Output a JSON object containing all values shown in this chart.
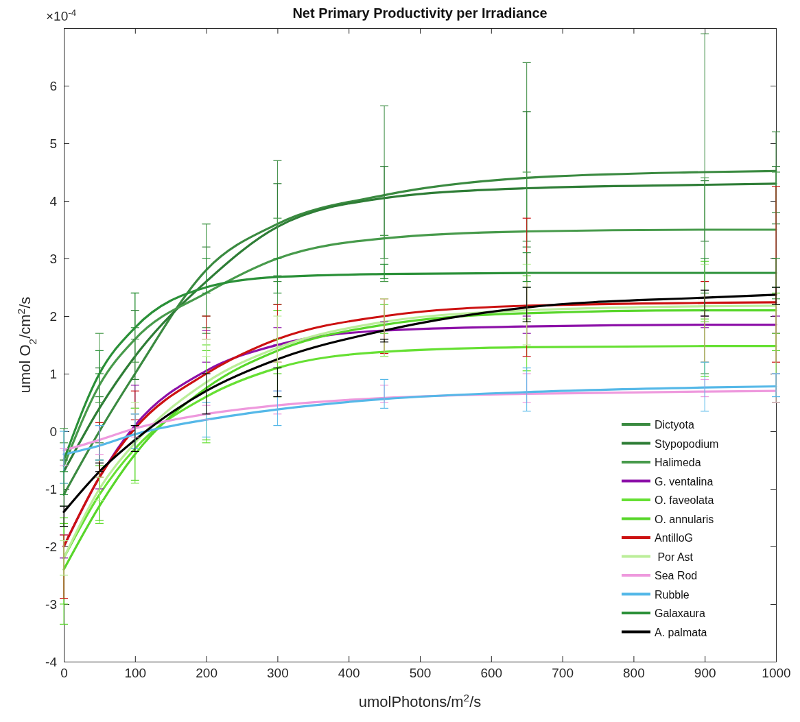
{
  "chart_data": {
    "type": "line",
    "title": "Net Primary Productivity per Irradiance",
    "xlabel": "umolPhotons/m$^{2}$/s",
    "ylabel": "umol O$_{2}$/cm$^{2}$/s",
    "annotations": [
      "×10$^{-4}$"
    ],
    "x": [
      0,
      50,
      100,
      200,
      300,
      450,
      650,
      900,
      1000
    ],
    "xlim": [
      0,
      1000
    ],
    "xticks": [
      0,
      100,
      200,
      300,
      400,
      500,
      600,
      700,
      800,
      900,
      1000
    ],
    "ylim": [
      -4,
      7
    ],
    "yticks": [
      -4,
      -3,
      -2,
      -1,
      0,
      1,
      2,
      3,
      4,
      5,
      6
    ],
    "grid": false,
    "legend": "bottom right",
    "marker": "none",
    "line_style": "solid",
    "series": [
      {
        "name": "Dictyota",
        "color": "#3a8a40",
        "values": [
          -1.1,
          0.0,
          1.0,
          2.8,
          3.6,
          4.1,
          4.4,
          4.5,
          4.52
        ],
        "errors": [
          [
            -1.3,
            -0.9
          ],
          [
            -0.6,
            0.6
          ],
          [
            0.4,
            1.6
          ],
          [
            1.8,
            3.6
          ],
          [
            2.6,
            4.7
          ],
          [
            3.0,
            5.65
          ],
          [
            3.3,
            6.4
          ],
          [
            2.1,
            6.9
          ],
          [
            3.8,
            5.2
          ]
        ]
      },
      {
        "name": "Stypopodium",
        "color": "#2e7d36",
        "values": [
          -0.7,
          0.4,
          1.3,
          2.6,
          3.55,
          4.05,
          4.22,
          4.28,
          4.3
        ],
        "errors": [
          [
            -0.9,
            -0.5
          ],
          [
            -0.2,
            1.1
          ],
          [
            0.9,
            2.1
          ],
          [
            2.0,
            3.2
          ],
          [
            2.7,
            4.3
          ],
          [
            3.4,
            4.6
          ],
          [
            3.2,
            5.55
          ],
          [
            3.3,
            4.35
          ],
          [
            3.6,
            4.6
          ]
        ]
      },
      {
        "name": "Halimeda",
        "color": "#479a4b",
        "values": [
          -0.6,
          0.8,
          1.6,
          2.4,
          3.0,
          3.35,
          3.47,
          3.5,
          3.5
        ],
        "errors": [
          [
            -0.2,
            0.05
          ],
          [
            0.5,
            1.7
          ],
          [
            1.2,
            2.4
          ],
          [
            1.7,
            3.6
          ],
          [
            2.2,
            3.7
          ],
          [
            2.6,
            3.4
          ],
          [
            2.5,
            4.5
          ],
          [
            1.0,
            4.4
          ],
          [
            2.3,
            4.5
          ]
        ]
      },
      {
        "name": "G. ventalina",
        "color": "#8c10a8",
        "values": [
          -2.0,
          -0.8,
          0.1,
          1.05,
          1.5,
          1.75,
          1.82,
          1.85,
          1.85
        ],
        "errors": [
          [
            -2.2,
            -1.8
          ],
          [
            -1.0,
            -0.5
          ],
          [
            0.1,
            0.8
          ],
          [
            1.2,
            1.75
          ],
          [
            1.5,
            1.8
          ],
          [
            1.6,
            1.9
          ],
          [
            1.7,
            2.0
          ],
          [
            1.8,
            2.0
          ],
          [
            1.7,
            2.0
          ]
        ]
      },
      {
        "name": "O. faveolata",
        "color": "#66e033",
        "values": [
          -2.2,
          -1.1,
          -0.3,
          0.6,
          1.1,
          1.38,
          1.46,
          1.48,
          1.48
        ],
        "errors": [
          [
            -3.0,
            -1.5
          ],
          [
            -1.6,
            -0.5
          ],
          [
            -0.9,
            0.4
          ],
          [
            -0.2,
            1.5
          ],
          [
            0.6,
            1.6
          ],
          [
            1.3,
            1.6
          ],
          [
            1.05,
            1.95
          ],
          [
            0.95,
            1.9
          ],
          [
            0.5,
            1.7
          ]
        ]
      },
      {
        "name": "O. annularis",
        "color": "#58d62a",
        "values": [
          -2.4,
          -1.3,
          -0.4,
          0.75,
          1.4,
          1.85,
          2.05,
          2.1,
          2.1
        ],
        "errors": [
          [
            -3.35,
            -1.6
          ],
          [
            -1.55,
            -0.6
          ],
          [
            -0.85,
            0.3
          ],
          [
            -0.15,
            1.4
          ],
          [
            1.0,
            2.1
          ],
          [
            1.7,
            2.2
          ],
          [
            1.9,
            2.7
          ],
          [
            1.95,
            2.95
          ],
          [
            1.4,
            2.4
          ]
        ]
      },
      {
        "name": "AntilloG",
        "color": "#cc1111",
        "values": [
          -2.0,
          -0.8,
          0.05,
          1.0,
          1.6,
          2.0,
          2.18,
          2.23,
          2.24
        ],
        "errors": [
          [
            -2.9,
            -1.8
          ],
          [
            -0.8,
            0.15
          ],
          [
            0.2,
            0.7
          ],
          [
            1.6,
            2.0
          ],
          [
            1.2,
            2.2
          ],
          [
            1.35,
            2.3
          ],
          [
            1.3,
            3.7
          ],
          [
            1.2,
            2.6
          ],
          [
            1.2,
            4.25
          ]
        ]
      },
      {
        "name": " Por Ast",
        "color": "#bbee99",
        "values": [
          -2.2,
          -1.0,
          -0.2,
          0.85,
          1.45,
          1.9,
          2.1,
          2.17,
          2.18
        ],
        "errors": [
          [
            -2.5,
            -1.9
          ],
          [
            -1.2,
            -0.8
          ],
          [
            -0.3,
            0.5
          ],
          [
            1.3,
            1.6
          ],
          [
            1.2,
            2.0
          ],
          [
            1.3,
            2.3
          ],
          [
            1.5,
            2.9
          ],
          [
            1.2,
            2.9
          ],
          [
            1.0,
            2.2
          ]
        ]
      },
      {
        "name": "Sea Rod",
        "color": "#ee99dd",
        "values": [
          -0.33,
          -0.15,
          0.05,
          0.3,
          0.45,
          0.58,
          0.65,
          0.69,
          0.7
        ],
        "errors": [
          [
            -0.6,
            -0.3
          ],
          [
            -0.4,
            0.1
          ],
          [
            -0.1,
            0.3
          ],
          [
            0.2,
            0.45
          ],
          [
            0.3,
            0.7
          ],
          [
            0.5,
            0.8
          ],
          [
            0.5,
            1.0
          ],
          [
            0.6,
            0.9
          ],
          [
            0.5,
            1.0
          ]
        ]
      },
      {
        "name": "Rubble",
        "color": "#55b8e8",
        "values": [
          -0.4,
          -0.25,
          -0.05,
          0.2,
          0.38,
          0.56,
          0.68,
          0.76,
          0.78
        ],
        "errors": [
          [
            -0.9,
            0.0
          ],
          [
            -0.5,
            0.1
          ],
          [
            -0.3,
            0.3
          ],
          [
            -0.1,
            0.5
          ],
          [
            0.1,
            0.7
          ],
          [
            0.4,
            0.9
          ],
          [
            0.35,
            1.1
          ],
          [
            0.35,
            1.2
          ],
          [
            0.6,
            1.0
          ]
        ]
      },
      {
        "name": "Galaxaura",
        "color": "#2a9038",
        "values": [
          -0.5,
          1.0,
          1.8,
          2.5,
          2.68,
          2.73,
          2.75,
          2.75,
          2.75
        ],
        "errors": [
          [
            -1.1,
            -0.7
          ],
          [
            1.0,
            1.4
          ],
          [
            1.8,
            2.4
          ],
          [
            2.4,
            3.0
          ],
          [
            2.4,
            3.0
          ],
          [
            2.65,
            2.9
          ],
          [
            2.6,
            3.1
          ],
          [
            2.4,
            3.0
          ],
          [
            2.5,
            3.0
          ]
        ]
      },
      {
        "name": "A. palmata",
        "color": "#000000",
        "values": [
          -1.4,
          -0.7,
          -0.15,
          0.7,
          1.25,
          1.75,
          2.15,
          2.32,
          2.37
        ],
        "errors": [
          [
            -1.65,
            -1.3
          ],
          [
            -0.7,
            -0.55
          ],
          [
            -0.35,
            0.1
          ],
          [
            0.3,
            1.0
          ],
          [
            0.6,
            1.1
          ],
          [
            1.55,
            1.6
          ],
          [
            1.9,
            2.5
          ],
          [
            2.0,
            2.45
          ],
          [
            2.2,
            2.5
          ]
        ]
      }
    ]
  }
}
